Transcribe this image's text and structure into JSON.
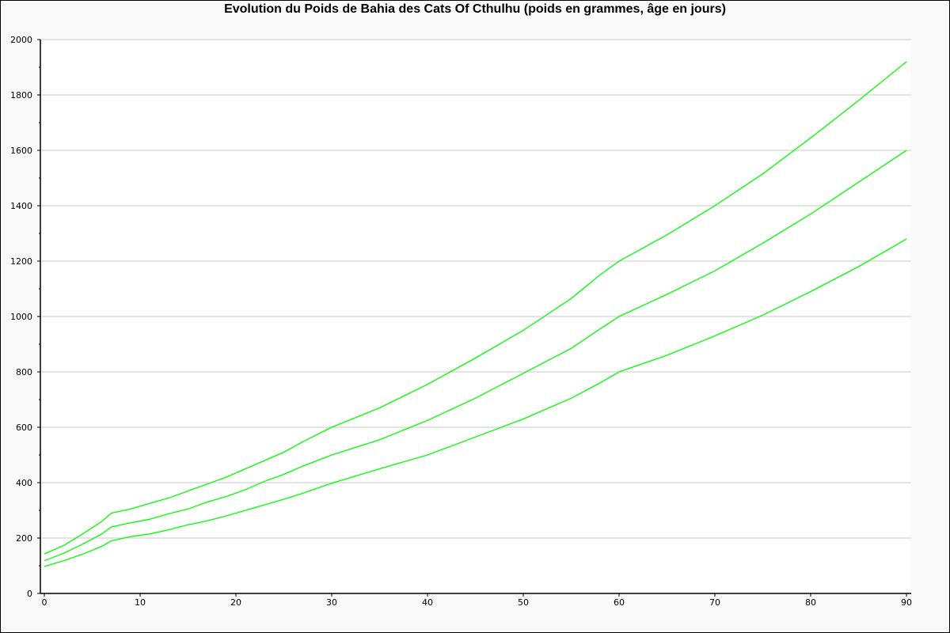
{
  "chart_data": {
    "type": "line",
    "title": "Evolution du Poids de Bahia des Cats Of Cthulhu (poids en grammes, âge en jours)",
    "xlabel": "",
    "ylabel": "",
    "xlim": [
      0,
      90
    ],
    "ylim": [
      0,
      2000
    ],
    "xticks": [
      0,
      10,
      20,
      30,
      40,
      50,
      60,
      70,
      80,
      90
    ],
    "yticks": [
      0,
      200,
      400,
      600,
      800,
      1000,
      1200,
      1400,
      1600,
      1800,
      2000
    ],
    "grid": "horizontal",
    "legend": "none",
    "line_color": "#00ff00",
    "x": [
      0,
      2,
      4,
      6,
      7,
      9,
      11,
      13,
      15,
      17,
      19,
      21,
      23,
      25,
      27,
      30,
      35,
      40,
      45,
      50,
      55,
      58,
      60,
      65,
      70,
      75,
      80,
      85,
      90
    ],
    "series": [
      {
        "values": [
          97,
          118,
          142,
          170,
          190,
          205,
          215,
          230,
          248,
          262,
          280,
          300,
          320,
          340,
          362,
          398,
          450,
          500,
          565,
          630,
          705,
          760,
          800,
          860,
          930,
          1005,
          1090,
          1180,
          1280
        ]
      },
      {
        "values": [
          118,
          145,
          178,
          215,
          240,
          255,
          268,
          288,
          305,
          330,
          350,
          375,
          405,
          430,
          460,
          500,
          555,
          625,
          705,
          795,
          885,
          955,
          1000,
          1080,
          1165,
          1265,
          1370,
          1485,
          1600
        ]
      },
      {
        "values": [
          143,
          173,
          215,
          260,
          290,
          305,
          325,
          345,
          370,
          395,
          420,
          450,
          480,
          510,
          548,
          600,
          670,
          755,
          850,
          950,
          1065,
          1150,
          1200,
          1295,
          1400,
          1515,
          1645,
          1780,
          1920
        ]
      }
    ]
  }
}
